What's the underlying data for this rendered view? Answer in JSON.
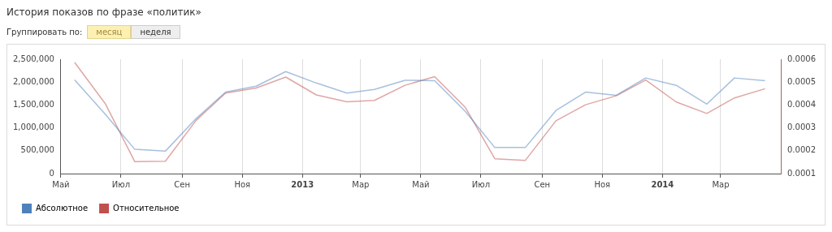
{
  "chart_data": {
    "type": "line",
    "title": "История показов по фразе «политик»",
    "annotations": [
      "Группировать по:",
      "месяц",
      "неделя"
    ],
    "x": [
      "2012-05-15",
      "2012-06-15",
      "2012-07-15",
      "2012-08-15",
      "2012-09-15",
      "2012-10-15",
      "2012-11-15",
      "2012-12-15",
      "2013-01-15",
      "2013-02-15",
      "2013-03-15",
      "2013-04-15",
      "2013-05-15",
      "2013-06-15",
      "2013-07-15",
      "2013-08-15",
      "2013-09-15",
      "2013-10-15",
      "2013-11-15",
      "2013-12-15",
      "2014-01-15",
      "2014-02-15",
      "2014-03-15",
      "2014-04-15"
    ],
    "xlim": [
      "2012-05-01",
      "2014-05-01"
    ],
    "xticks": [
      {
        "value": "2012-05-01",
        "label": "Май"
      },
      {
        "value": "2012-07-01",
        "label": "Июл"
      },
      {
        "value": "2012-09-01",
        "label": "Сен"
      },
      {
        "value": "2012-11-01",
        "label": "Ноя"
      },
      {
        "value": "2013-01-01",
        "label": "2013"
      },
      {
        "value": "2013-03-01",
        "label": "Мар"
      },
      {
        "value": "2013-05-01",
        "label": "Май"
      },
      {
        "value": "2013-07-01",
        "label": "Июл"
      },
      {
        "value": "2013-09-01",
        "label": "Сен"
      },
      {
        "value": "2013-11-01",
        "label": "Ноя"
      },
      {
        "value": "2014-01-01",
        "label": "2014"
      },
      {
        "value": "2014-03-01",
        "label": "Мар"
      }
    ],
    "ylim": [
      0,
      2500000
    ],
    "yticks": [
      {
        "value": 0,
        "label": "0"
      },
      {
        "value": 500000,
        "label": "500,000"
      },
      {
        "value": 1000000,
        "label": "1,000,000"
      },
      {
        "value": 1500000,
        "label": "1,500,000"
      },
      {
        "value": 2000000,
        "label": "2,000,000"
      },
      {
        "value": 2500000,
        "label": "2,500,000"
      }
    ],
    "y2lim": [
      0.0001,
      0.0006
    ],
    "y2ticks": [
      0.0001,
      0.0002,
      0.0003,
      0.0004,
      0.0005,
      0.0006
    ],
    "series": [
      {
        "name": "Абсолютное",
        "color": "#4f81bd",
        "values": [
          2050000,
          1300000,
          530000,
          490000,
          1200000,
          1780000,
          1910000,
          2230000,
          1980000,
          1760000,
          1840000,
          2040000,
          2030000,
          1360000,
          570000,
          570000,
          1380000,
          1780000,
          1710000,
          2090000,
          1930000,
          1520000,
          2090000,
          2030000
        ]
      },
      {
        "name": "Относительное",
        "color": "#c0504d",
        "axis": "y2",
        "values": [
          0.000586,
          0.000406,
          0.000152,
          0.000154,
          0.000332,
          0.000452,
          0.000474,
          0.000522,
          0.000444,
          0.000414,
          0.00042,
          0.000486,
          0.000524,
          0.00039,
          0.000165,
          0.000158,
          0.000331,
          0.000401,
          0.00044,
          0.000509,
          0.000413,
          0.000363,
          0.000431,
          0.000471
        ]
      }
    ],
    "grid": "x",
    "legend": "bottom left",
    "marker": "none",
    "line_style": "solid"
  }
}
